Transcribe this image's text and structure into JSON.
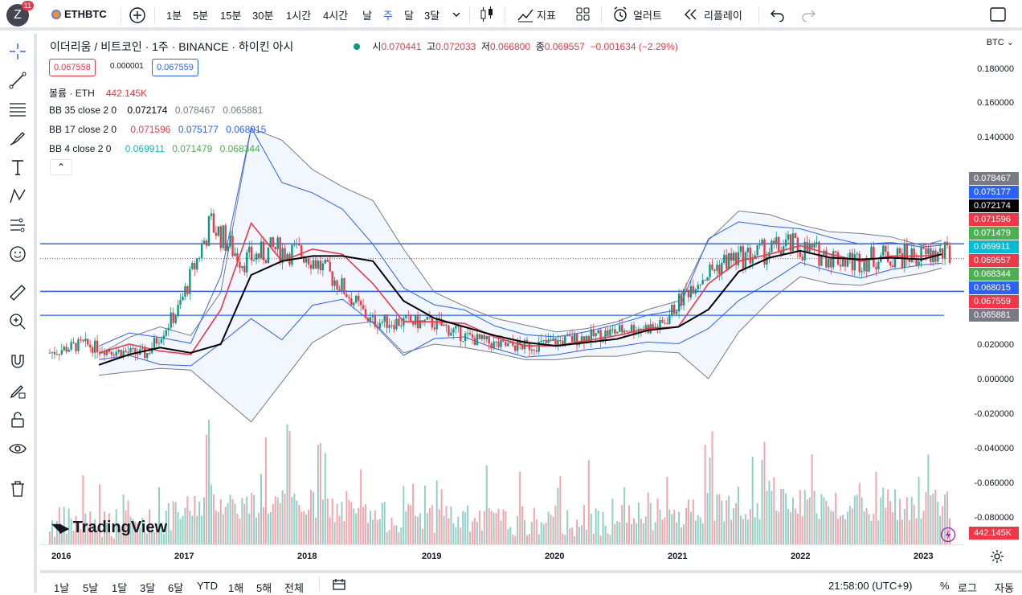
{
  "header": {
    "logo_letter": "Z",
    "notif_count": "11",
    "symbol": "ETHBTC",
    "add_icon": "plus-circle-icon",
    "intervals": [
      "1분",
      "5분",
      "15분",
      "30분",
      "1시간",
      "4시간",
      "날",
      "주",
      "달",
      "3달"
    ],
    "active_interval": "주",
    "indicators_label": "지표",
    "alert_label": "얼러트",
    "replay_label": "리플레이"
  },
  "legend": {
    "title": "이더리움 / 비트코인 · 1주 · BINANCE · 하이킨 아시",
    "open_label": "시",
    "open": "0.070441",
    "high_label": "고",
    "high": "0.072033",
    "low_label": "저",
    "low": "0.066800",
    "close_label": "종",
    "close": "0.069557",
    "change": "−0.001634 (−2.29%)",
    "sell_price": "0.067558",
    "spread": "0.000001",
    "buy_price": "0.067559",
    "volume_label": "볼륨 · ETH",
    "volume_value": "442.145K",
    "bb1_label": "BB 35 close 2 0",
    "bb1_basis": "0.072174",
    "bb1_upper": "0.078467",
    "bb1_lower": "0.065881",
    "bb2_label": "BB 17 close 2 0",
    "bb2_basis": "0.071596",
    "bb2_upper": "0.075177",
    "bb2_lower": "0.068015",
    "bb3_label": "BB 4 close 2 0",
    "bb3_basis": "0.069911",
    "bb3_upper": "0.071479",
    "bb3_lower": "0.068344"
  },
  "price_axis": {
    "currency": "BTC",
    "ticks": [
      "0.180000",
      "0.160000",
      "0.140000",
      "0.020000",
      "0.000000",
      "-0.020000",
      "-0.040000",
      "-0.060000",
      "-0.080000"
    ],
    "labels": [
      {
        "value": "0.078467",
        "color": "#787b86"
      },
      {
        "value": "0.075177",
        "color": "#2962ff"
      },
      {
        "value": "0.072174",
        "color": "#000000"
      },
      {
        "value": "0.071596",
        "color": "#f23645"
      },
      {
        "value": "0.071479",
        "color": "#4caf50"
      },
      {
        "value": "0.069911",
        "color": "#00bcd4"
      },
      {
        "value": "0.069557",
        "color": "#f23645"
      },
      {
        "value": "0.068344",
        "color": "#4caf50"
      },
      {
        "value": "0.068015",
        "color": "#2962ff"
      },
      {
        "value": "0.067559",
        "color": "#f23645"
      },
      {
        "value": "0.065881",
        "color": "#787b86"
      }
    ],
    "volume_label": "442.145K"
  },
  "time_axis": [
    "2016",
    "2017",
    "2018",
    "2019",
    "2020",
    "2021",
    "2022",
    "2023"
  ],
  "bottom": {
    "ranges": [
      "1날",
      "5날",
      "1달",
      "3달",
      "6달",
      "YTD",
      "1해",
      "5해",
      "전체"
    ],
    "time": "21:58:00 (UTC+9)",
    "pct": "%",
    "log": "로그",
    "auto": "자동"
  },
  "brand": "TradingView",
  "colors": {
    "up": "#089981",
    "down": "#f23645",
    "accent": "#2962ff",
    "bb35": "#000000",
    "bb17": "#f23645",
    "band_outer": "#787b86",
    "band_mid": "#2962ff",
    "bb4": "#4caf50"
  },
  "chart_data": {
    "type": "line",
    "series": [
      {
        "name": "BB 35 close 2 0",
        "x": [
          "2016-04",
          "2016-07",
          "2016-10",
          "2017-01",
          "2017-04",
          "2017-07",
          "2017-10",
          "2018-01",
          "2018-04",
          "2018-07",
          "2018-10",
          "2019-01",
          "2019-04",
          "2019-07",
          "2019-10",
          "2020-01",
          "2020-04",
          "2020-07",
          "2020-10",
          "2021-01",
          "2021-04",
          "2021-07",
          "2021-10",
          "2022-01",
          "2022-04",
          "2022-07",
          "2022-10",
          "2023-01",
          "2023-03"
        ],
        "values": [
          0.008,
          0.014,
          0.018,
          0.015,
          0.02,
          0.06,
          0.068,
          0.071,
          0.071,
          0.068,
          0.045,
          0.035,
          0.03,
          0.025,
          0.021,
          0.019,
          0.021,
          0.023,
          0.028,
          0.03,
          0.04,
          0.062,
          0.07,
          0.074,
          0.07,
          0.069,
          0.07,
          0.069,
          0.072
        ]
      },
      {
        "name": "BB 17 close 2 0",
        "x": [
          "2016-04",
          "2016-07",
          "2016-10",
          "2017-01",
          "2017-04",
          "2017-07",
          "2017-10",
          "2018-01",
          "2018-04",
          "2018-07",
          "2018-10",
          "2019-01",
          "2019-04",
          "2019-07",
          "2019-10",
          "2020-01",
          "2020-04",
          "2020-07",
          "2020-10",
          "2021-01",
          "2021-04",
          "2021-07",
          "2021-10",
          "2022-01",
          "2022-04",
          "2022-07",
          "2022-10",
          "2023-01",
          "2023-03"
        ],
        "values": [
          0.015,
          0.02,
          0.016,
          0.014,
          0.04,
          0.09,
          0.068,
          0.075,
          0.072,
          0.055,
          0.033,
          0.033,
          0.032,
          0.024,
          0.019,
          0.019,
          0.022,
          0.025,
          0.029,
          0.03,
          0.055,
          0.068,
          0.072,
          0.077,
          0.072,
          0.068,
          0.071,
          0.071,
          0.072
        ]
      }
    ],
    "ylim": [
      -0.09,
      0.19
    ],
    "xlabel": "",
    "ylabel": "BTC"
  }
}
